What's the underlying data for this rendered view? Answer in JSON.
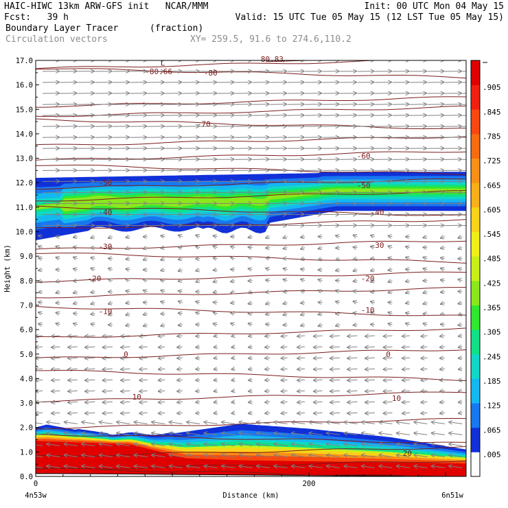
{
  "header": {
    "line1_left": "HAIC-HIWC 13km ARW-GFS init   NCAR/MMM",
    "line1_right": "Init: 00 UTC Mon 04 May 15",
    "line2_left": "Fcst:   39 h",
    "line2_right": "Valid: 15 UTC Tue 05 May 15 (12 LST Tue 05 May 15)",
    "line3_left": "Boundary Layer Tracer",
    "line3_units": "(fraction)",
    "line4_left": "Circulation vectors",
    "line4_xy": "XY= 259.5, 91.6 to 274.6,110.2"
  },
  "chart_data": {
    "type": "heatmap",
    "title": "Boundary Layer Tracer",
    "units": "(fraction)",
    "ylabel": "Height (km)",
    "xlabel": "Distance (km)",
    "xlim": [
      0,
      315
    ],
    "ylim": [
      0,
      17
    ],
    "y_ticks": [
      "0.0",
      "1.0",
      "2.0",
      "3.0",
      "4.0",
      "5.0",
      "6.0",
      "7.0",
      "8.0",
      "9.0",
      "10.0",
      "11.0",
      "12.0",
      "13.0",
      "14.0",
      "15.0",
      "16.0",
      "17.0"
    ],
    "x_ticks": [
      "0",
      "200"
    ],
    "x_tick_values": [
      0,
      200
    ],
    "x_endpoints": {
      "left": "4n53w",
      "right": "6n51w"
    },
    "colorbar": {
      "levels": [
        ".005",
        ".065",
        ".125",
        ".185",
        ".245",
        ".305",
        ".365",
        ".425",
        ".485",
        ".545",
        ".605",
        ".665",
        ".725",
        ".785",
        ".845",
        ".905"
      ],
      "colors": [
        "#ffffff",
        "#1030d8",
        "#1878f0",
        "#14b8f0",
        "#10d8c8",
        "#10e088",
        "#30e830",
        "#8ce81c",
        "#c8f018",
        "#f0f018",
        "#f8d418",
        "#f8b018",
        "#f89018",
        "#f86c10",
        "#f84810",
        "#f02010",
        "#e00000"
      ]
    },
    "tracer_regions": [
      {
        "name": "upper layer",
        "base_km": 10.2,
        "top_km": 12.5,
        "core_value": 0.665,
        "edge_value": 0.065
      },
      {
        "name": "boundary layer",
        "base_km": 0.0,
        "top_km": 2.1,
        "core_value": 0.905,
        "edge_value": 0.065
      }
    ],
    "contour_labels": [
      {
        "label": "L",
        "x_km": 93,
        "z_km": 16.9
      },
      {
        "label": "-80.66",
        "x_km": 90,
        "z_km": 16.55
      },
      {
        "label": "-80",
        "x_km": 128,
        "z_km": 16.5
      },
      {
        "label": "80.83",
        "x_km": 173,
        "z_km": 17.05
      },
      {
        "label": "-70",
        "x_km": 123,
        "z_km": 14.4
      },
      {
        "label": "-60",
        "x_km": 240,
        "z_km": 13.1
      },
      {
        "label": "-50",
        "x_km": 51,
        "z_km": 12.0
      },
      {
        "label": "-50",
        "x_km": 240,
        "z_km": 11.9
      },
      {
        "label": "-40",
        "x_km": 51,
        "z_km": 10.8
      },
      {
        "label": "-40",
        "x_km": 250,
        "z_km": 10.8
      },
      {
        "label": "-30",
        "x_km": 51,
        "z_km": 9.4
      },
      {
        "label": "-30",
        "x_km": 250,
        "z_km": 9.45
      },
      {
        "label": "-20",
        "x_km": 43,
        "z_km": 8.1
      },
      {
        "label": "-20",
        "x_km": 243,
        "z_km": 8.1
      },
      {
        "label": "-10",
        "x_km": 51,
        "z_km": 6.75
      },
      {
        "label": "-10",
        "x_km": 243,
        "z_km": 6.8
      },
      {
        "label": "0",
        "x_km": 66,
        "z_km": 5.0
      },
      {
        "label": "0",
        "x_km": 258,
        "z_km": 5.0
      },
      {
        "label": "10",
        "x_km": 74,
        "z_km": 3.25
      },
      {
        "label": "10",
        "x_km": 264,
        "z_km": 3.2
      },
      {
        "label": "20",
        "x_km": 272,
        "z_km": 0.95
      }
    ]
  }
}
